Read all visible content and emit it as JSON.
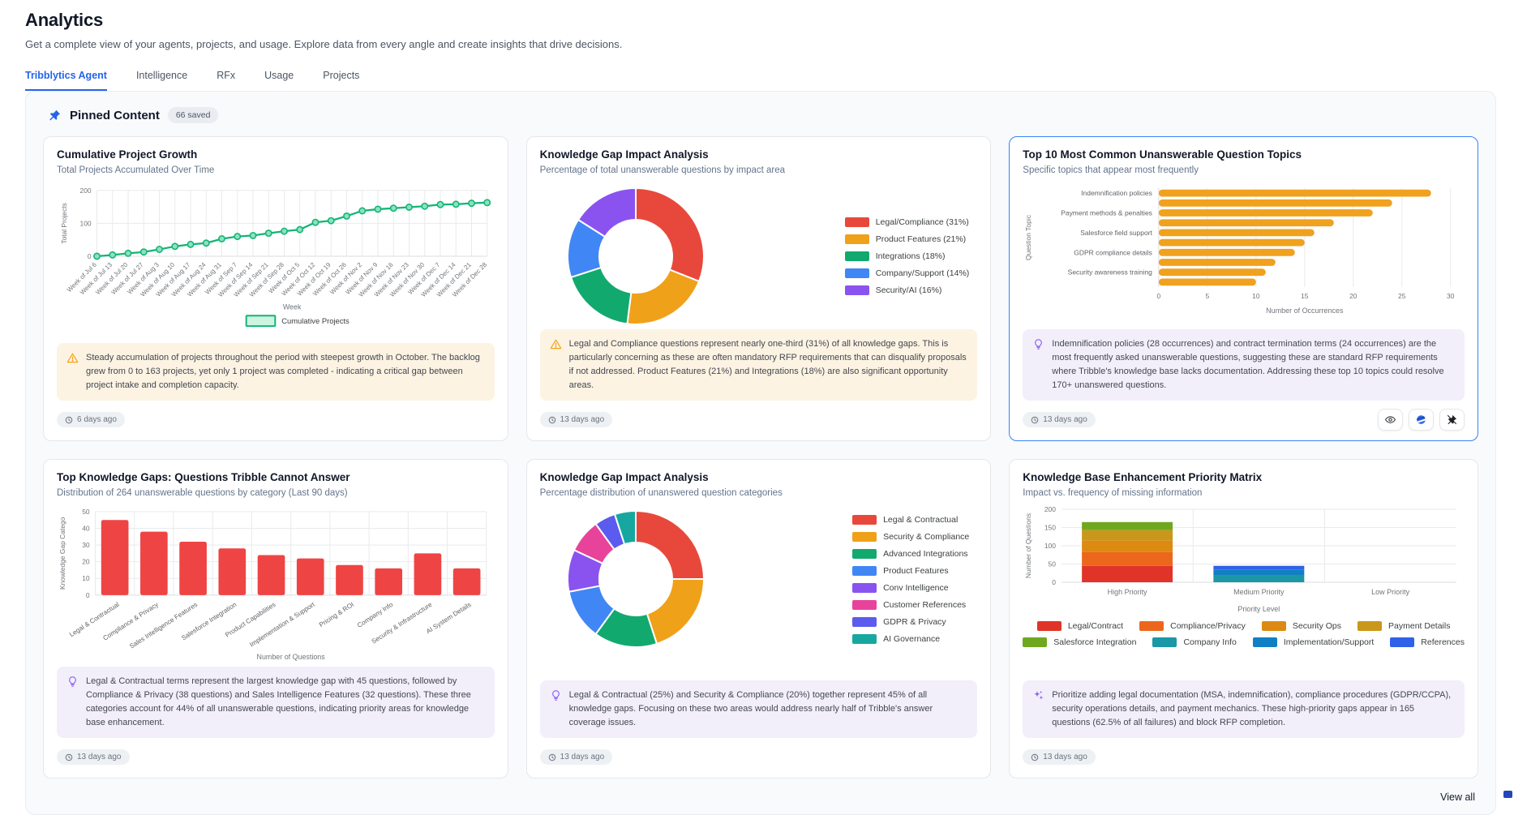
{
  "page": {
    "title": "Analytics",
    "subtitle": "Get a complete view of your agents, projects, and usage. Explore data from every angle and create insights that drive decisions."
  },
  "tabs": [
    {
      "label": "Tribblytics Agent",
      "active": true
    },
    {
      "label": "Intelligence",
      "active": false
    },
    {
      "label": "RFx",
      "active": false
    },
    {
      "label": "Usage",
      "active": false
    },
    {
      "label": "Projects",
      "active": false
    }
  ],
  "pinned": {
    "title": "Pinned Content",
    "badge": "66 saved",
    "view_all": "View all"
  },
  "cards": [
    {
      "title": "Cumulative Project Growth",
      "subtitle": "Total Projects Accumulated Over Time",
      "timestamp": "6 days ago",
      "insight": "Steady accumulation of projects throughout the period with steepest growth in October. The backlog grew from 0 to 163 projects, yet only 1 project was completed - indicating a critical gap between project intake and completion capacity.",
      "chart_data": {
        "type": "line",
        "x": [
          "Week of Jul 6",
          "Week of Jul 13",
          "Week of Jul 20",
          "Week of Jul 27",
          "Week of Aug 3",
          "Week of Aug 10",
          "Week of Aug 17",
          "Week of Aug 24",
          "Week of Aug 31",
          "Week of Sep 7",
          "Week of Sep 14",
          "Week of Sep 21",
          "Week of Sep 28",
          "Week of Oct 5",
          "Week of Oct 12",
          "Week of Oct 19",
          "Week of Oct 26",
          "Week of Nov 2",
          "Week of Nov 9",
          "Week of Nov 16",
          "Week of Nov 23",
          "Week of Nov 30",
          "Week of Dec 7",
          "Week of Dec 14",
          "Week of Dec 21",
          "Week of Dec 28"
        ],
        "values": [
          0,
          4,
          9,
          13,
          21,
          30,
          36,
          40,
          53,
          60,
          63,
          70,
          76,
          81,
          103,
          108,
          122,
          138,
          143,
          146,
          149,
          152,
          157,
          158,
          161,
          163
        ],
        "xlabel": "Week",
        "ylabel": "Total Projects",
        "ylim": [
          0,
          200
        ],
        "yticks": [
          0,
          100,
          200
        ],
        "legend": "Cumulative Projects",
        "color": "#14B478",
        "marker_fill": "#8BE3BC",
        "legend_fill": "#CDF3E1"
      }
    },
    {
      "title": "Knowledge Gap Impact Analysis",
      "subtitle": "Percentage of total unanswerable questions by impact area",
      "timestamp": "13 days ago",
      "insight": "Legal and Compliance questions represent nearly one-third (31%) of all knowledge gaps. This is particularly concerning as these are often mandatory RFP requirements that can disqualify proposals if not addressed. Product Features (21%) and Integrations (18%) are also significant opportunity areas.",
      "chart_data": {
        "type": "donut",
        "labels": [
          "Legal/Compliance (31%)",
          "Product Features (21%)",
          "Integrations (18%)",
          "Company/Support (14%)",
          "Security/AI (16%)"
        ],
        "values": [
          31,
          21,
          18,
          14,
          16
        ],
        "colors": [
          "#E8483C",
          "#F0A11A",
          "#12A96F",
          "#4186F5",
          "#8A53F0"
        ]
      }
    },
    {
      "title": "Top 10 Most Common Unanswerable Question Topics",
      "subtitle": "Specific topics that appear most frequently",
      "timestamp": "13 days ago",
      "insight": "Indemnification policies (28 occurrences) and contract termination terms (24 occurrences) are the most frequently asked unanswerable questions, suggesting these are standard RFP requirements where Tribble's knowledge base lacks documentation. Addressing these top 10 topics could resolve 170+ unanswered questions.",
      "chart_data": {
        "type": "hbar",
        "categories": [
          "Indemnification policies",
          "",
          "Payment methods & penalties",
          "",
          "Salesforce field support",
          "",
          "GDPR compliance details",
          "",
          "Security awareness training",
          ""
        ],
        "values": [
          28,
          24,
          22,
          18,
          16,
          15,
          14,
          12,
          11,
          10
        ],
        "xlabel": "Number of Occurrences",
        "ylabel": "Question Topic",
        "xlim": [
          0,
          30
        ],
        "xticks": [
          0,
          5,
          10,
          15,
          20,
          25,
          30
        ],
        "color": "#F0A11E"
      }
    },
    {
      "title": "Top Knowledge Gaps: Questions Tribble Cannot Answer",
      "subtitle": "Distribution of 264 unanswerable questions by category (Last 90 days)",
      "timestamp": "13 days ago",
      "insight": "Legal & Contractual terms represent the largest knowledge gap with 45 questions, followed by Compliance & Privacy (38 questions) and Sales Intelligence Features (32 questions). These three categories account for 44% of all unanswerable questions, indicating priority areas for knowledge base enhancement.",
      "chart_data": {
        "type": "vbar",
        "categories": [
          "Legal & Contractual",
          "Compliance & Privacy",
          "Sales Intelligence Features",
          "Salesforce Integration",
          "Product Capabilities",
          "Implementation & Support",
          "Pricing & ROI",
          "Company Info",
          "Security & Infrastructure",
          "AI System Details"
        ],
        "values": [
          45,
          38,
          32,
          28,
          24,
          22,
          18,
          16,
          25,
          16
        ],
        "xlabel": "Number of Questions",
        "ylabel": "Knowledge Gap Catego",
        "ylim": [
          0,
          50
        ],
        "yticks": [
          0,
          10,
          20,
          30,
          40,
          50
        ],
        "color": "#EF4444"
      }
    },
    {
      "title": "Knowledge Gap Impact Analysis",
      "subtitle": "Percentage distribution of unanswered question categories",
      "timestamp": "13 days ago",
      "insight": "Legal & Contractual (25%) and Security & Compliance (20%) together represent 45% of all knowledge gaps. Focusing on these two areas would address nearly half of Tribble's answer coverage issues.",
      "chart_data": {
        "type": "donut",
        "labels": [
          "Legal & Contractual",
          "Security & Compliance",
          "Advanced Integrations",
          "Product Features",
          "Conv Intelligence",
          "Customer References",
          "GDPR & Privacy",
          "AI Governance"
        ],
        "values": [
          25,
          20,
          15,
          12,
          10,
          8,
          5,
          5
        ],
        "colors": [
          "#E8483C",
          "#F0A11A",
          "#12A96F",
          "#4186F5",
          "#8A53F0",
          "#E8439A",
          "#5B5BEF",
          "#16A8A0"
        ]
      }
    },
    {
      "title": "Knowledge Base Enhancement Priority Matrix",
      "subtitle": "Impact vs. frequency of missing information",
      "timestamp": "13 days ago",
      "insight": "Prioritize adding legal documentation (MSA, indemnification), compliance procedures (GDPR/CCPA), security operations details, and payment mechanics. These high-priority gaps appear in 165 questions (62.5% of all failures) and block RFP completion.",
      "chart_data": {
        "type": "stacked",
        "categories": [
          "High Priority",
          "Medium Priority",
          "Low Priority"
        ],
        "series": [
          {
            "name": "Legal/Contract",
            "color": "#E03428",
            "values": [
              45,
              0,
              0
            ]
          },
          {
            "name": "Compliance/Privacy",
            "color": "#EC661C",
            "values": [
              38,
              0,
              0
            ]
          },
          {
            "name": "Security Ops",
            "color": "#DD8A12",
            "values": [
              32,
              0,
              0
            ]
          },
          {
            "name": "Payment Details",
            "color": "#C9971A",
            "values": [
              28,
              0,
              0
            ]
          },
          {
            "name": "Salesforce Integration",
            "color": "#6FA81F",
            "values": [
              22,
              0,
              0
            ]
          },
          {
            "name": "Company Info",
            "color": "#1B97A5",
            "values": [
              0,
              20,
              0
            ]
          },
          {
            "name": "Implementation/Support",
            "color": "#1080C4",
            "values": [
              0,
              15,
              0
            ]
          },
          {
            "name": "References",
            "color": "#2F62E8",
            "values": [
              0,
              10,
              0
            ]
          }
        ],
        "xlabel": "Priority Level",
        "ylabel": "Number of Questions",
        "ylim": [
          0,
          200
        ],
        "yticks": [
          0,
          50,
          100,
          150,
          200
        ]
      }
    }
  ]
}
